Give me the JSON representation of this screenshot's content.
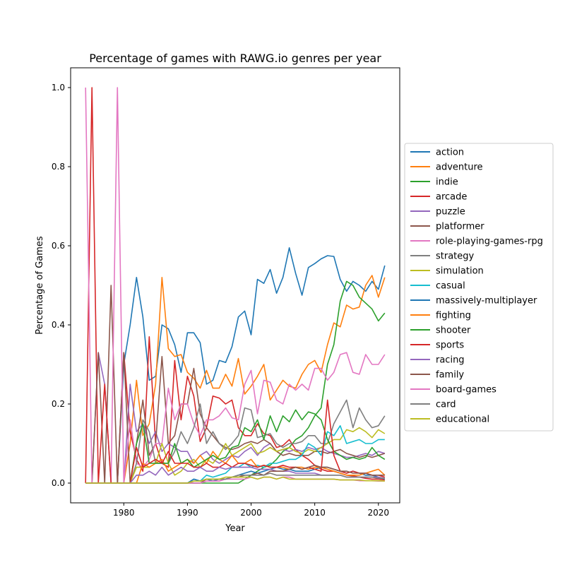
{
  "chart_data": {
    "type": "line",
    "title": "Percentage of games with RAWG.io genres per year",
    "xlabel": "Year",
    "ylabel": "Percentage of Games",
    "xlim": [
      1971.65,
      2023.35
    ],
    "ylim": [
      -0.05,
      1.05
    ],
    "xticks": [
      1980,
      1990,
      2000,
      2010,
      2020
    ],
    "yticks": [
      0.0,
      0.2,
      0.4,
      0.6,
      0.8,
      1.0
    ],
    "grid": false,
    "legend_position": "outside-right",
    "x": [
      1974,
      1975,
      1976,
      1977,
      1978,
      1979,
      1980,
      1981,
      1982,
      1983,
      1984,
      1985,
      1986,
      1987,
      1988,
      1989,
      1990,
      1991,
      1992,
      1993,
      1994,
      1995,
      1996,
      1997,
      1998,
      1999,
      2000,
      2001,
      2002,
      2003,
      2004,
      2005,
      2006,
      2007,
      2008,
      2009,
      2010,
      2011,
      2012,
      2013,
      2014,
      2015,
      2016,
      2017,
      2018,
      2019,
      2020,
      2021
    ],
    "series": [
      {
        "name": "action",
        "color": "#1f77b4",
        "values": [
          0,
          0,
          0,
          0,
          0,
          0,
          0.3,
          0.4,
          0.52,
          0.42,
          0.26,
          0.27,
          0.4,
          0.39,
          0.35,
          0.28,
          0.38,
          0.38,
          0.355,
          0.25,
          0.26,
          0.31,
          0.305,
          0.345,
          0.42,
          0.435,
          0.375,
          0.515,
          0.505,
          0.54,
          0.48,
          0.52,
          0.595,
          0.53,
          0.475,
          0.545,
          0.555,
          0.567,
          0.575,
          0.573,
          0.515,
          0.485,
          0.51,
          0.5,
          0.485,
          0.51,
          0.49,
          0.55
        ]
      },
      {
        "name": "adventure",
        "color": "#ff7f0e",
        "values": [
          0,
          0,
          0,
          0,
          0,
          0,
          0,
          0.1,
          0.26,
          0.12,
          0.15,
          0.25,
          0.52,
          0.34,
          0.32,
          0.325,
          0.28,
          0.265,
          0.24,
          0.285,
          0.24,
          0.24,
          0.275,
          0.245,
          0.315,
          0.225,
          0.245,
          0.27,
          0.3,
          0.21,
          0.235,
          0.26,
          0.245,
          0.24,
          0.275,
          0.3,
          0.31,
          0.28,
          0.35,
          0.405,
          0.395,
          0.45,
          0.44,
          0.445,
          0.5,
          0.525,
          0.47,
          0.52
        ]
      },
      {
        "name": "indie",
        "color": "#2ca02c",
        "values": [
          0,
          0,
          0,
          0,
          0,
          0,
          0,
          0,
          0,
          0,
          0,
          0,
          0,
          0,
          0,
          0,
          0,
          0,
          0,
          0,
          0,
          0,
          0,
          0,
          0,
          0.01,
          0.02,
          0.03,
          0.04,
          0.045,
          0.06,
          0.08,
          0.09,
          0.11,
          0.12,
          0.14,
          0.17,
          0.19,
          0.3,
          0.35,
          0.46,
          0.51,
          0.5,
          0.47,
          0.455,
          0.44,
          0.41,
          0.43
        ]
      },
      {
        "name": "arcade",
        "color": "#d62728",
        "values": [
          0,
          1.0,
          0,
          0,
          0,
          0,
          0.33,
          0.13,
          0.06,
          0.03,
          0.37,
          0.1,
          0.05,
          0.04,
          0.31,
          0.16,
          0.27,
          0.22,
          0.105,
          0.14,
          0.22,
          0.215,
          0.2,
          0.21,
          0.14,
          0.12,
          0.12,
          0.15,
          0.125,
          0.12,
          0.09,
          0.095,
          0.11,
          0.085,
          0.07,
          0.06,
          0.045,
          0.035,
          0.03,
          0.03,
          0.025,
          0.02,
          0.018,
          0.015,
          0.012,
          0.01,
          0.01,
          0.008
        ]
      },
      {
        "name": "puzzle",
        "color": "#9467bd",
        "values": [
          0,
          0,
          0.33,
          0.25,
          0,
          0,
          0,
          0.25,
          0.13,
          0.15,
          0.1,
          0.13,
          0.08,
          0.1,
          0.09,
          0.08,
          0.08,
          0.05,
          0.07,
          0.08,
          0.06,
          0.05,
          0.06,
          0.07,
          0.065,
          0.08,
          0.09,
          0.07,
          0.09,
          0.1,
          0.08,
          0.085,
          0.08,
          0.085,
          0.08,
          0.09,
          0.085,
          0.09,
          0.08,
          0.075,
          0.07,
          0.065,
          0.065,
          0.07,
          0.075,
          0.07,
          0.08,
          0.075
        ]
      },
      {
        "name": "platformer",
        "color": "#8c564b",
        "values": [
          0,
          0,
          0.33,
          0,
          0.5,
          0,
          0.33,
          0,
          0.1,
          0.21,
          0.07,
          0.1,
          0.32,
          0.1,
          0.12,
          0.2,
          0.2,
          0.29,
          0.175,
          0.14,
          0.12,
          0.1,
          0.09,
          0.085,
          0.09,
          0.1,
          0.105,
          0.1,
          0.11,
          0.1,
          0.08,
          0.07,
          0.075,
          0.07,
          0.07,
          0.07,
          0.08,
          0.08,
          0.075,
          0.08,
          0.085,
          0.075,
          0.07,
          0.065,
          0.07,
          0.065,
          0.07,
          0.075
        ]
      },
      {
        "name": "role-playing-games-rpg",
        "color": "#e377c2",
        "values": [
          1.0,
          0,
          0,
          0,
          0,
          1.0,
          0,
          0.16,
          0.05,
          0.04,
          0.06,
          0.1,
          0.1,
          0.24,
          0.16,
          0.2,
          0.2,
          0.15,
          0.12,
          0.16,
          0.16,
          0.17,
          0.19,
          0.165,
          0.16,
          0.25,
          0.285,
          0.175,
          0.26,
          0.255,
          0.21,
          0.2,
          0.25,
          0.235,
          0.25,
          0.235,
          0.29,
          0.29,
          0.26,
          0.28,
          0.325,
          0.33,
          0.28,
          0.275,
          0.325,
          0.3,
          0.3,
          0.325
        ]
      },
      {
        "name": "strategy",
        "color": "#7f7f7f",
        "values": [
          0,
          0,
          0,
          0,
          0,
          0,
          0,
          0,
          0.05,
          0.16,
          0.13,
          0.05,
          0.05,
          0.05,
          0.08,
          0.13,
          0.1,
          0.14,
          0.2,
          0.1,
          0.13,
          0.1,
          0.085,
          0.1,
          0.12,
          0.19,
          0.185,
          0.115,
          0.12,
          0.125,
          0.1,
          0.09,
          0.1,
          0.1,
          0.105,
          0.12,
          0.12,
          0.1,
          0.1,
          0.15,
          0.18,
          0.21,
          0.14,
          0.19,
          0.16,
          0.14,
          0.145,
          0.17
        ]
      },
      {
        "name": "simulation",
        "color": "#bcbd22",
        "values": [
          0,
          0,
          0,
          0,
          0,
          0,
          0,
          0,
          0.04,
          0.04,
          0.04,
          0.05,
          0.1,
          0.05,
          0.02,
          0.03,
          0.05,
          0.06,
          0.04,
          0.06,
          0.05,
          0.07,
          0.1,
          0.07,
          0.08,
          0.09,
          0.1,
          0.075,
          0.08,
          0.09,
          0.08,
          0.085,
          0.09,
          0.08,
          0.075,
          0.085,
          0.08,
          0.09,
          0.1,
          0.11,
          0.11,
          0.135,
          0.13,
          0.14,
          0.13,
          0.115,
          0.135,
          0.125
        ]
      },
      {
        "name": "casual",
        "color": "#17becf",
        "values": [
          0,
          0,
          0,
          0,
          0,
          0,
          0,
          0,
          0,
          0,
          0,
          0,
          0,
          0,
          0,
          0,
          0,
          0.01,
          0.005,
          0.02,
          0.015,
          0.02,
          0.025,
          0.04,
          0.04,
          0.05,
          0.04,
          0.045,
          0.04,
          0.05,
          0.05,
          0.055,
          0.06,
          0.06,
          0.07,
          0.1,
          0.09,
          0.07,
          0.13,
          0.12,
          0.145,
          0.1,
          0.105,
          0.11,
          0.1,
          0.1,
          0.11,
          0.11
        ]
      },
      {
        "name": "massively-multiplayer",
        "color": "#1f77b4",
        "values": [
          0,
          0,
          0,
          0,
          0,
          0,
          0,
          0,
          0,
          0,
          0,
          0,
          0,
          0,
          0,
          0,
          0,
          0.01,
          0.005,
          0.01,
          0.005,
          0.01,
          0.01,
          0.015,
          0.02,
          0.025,
          0.03,
          0.025,
          0.03,
          0.035,
          0.04,
          0.035,
          0.035,
          0.03,
          0.03,
          0.03,
          0.035,
          0.04,
          0.04,
          0.035,
          0.03,
          0.025,
          0.03,
          0.025,
          0.02,
          0.02,
          0.015,
          0.01
        ]
      },
      {
        "name": "fighting",
        "color": "#ff7f0e",
        "values": [
          0,
          0,
          0,
          0,
          0,
          0,
          0,
          0,
          0,
          0.05,
          0.04,
          0.05,
          0.06,
          0.03,
          0.04,
          0.05,
          0.06,
          0.05,
          0.07,
          0.05,
          0.08,
          0.06,
          0.05,
          0.07,
          0.05,
          0.05,
          0.06,
          0.04,
          0.045,
          0.04,
          0.04,
          0.04,
          0.035,
          0.04,
          0.04,
          0.035,
          0.04,
          0.04,
          0.035,
          0.03,
          0.025,
          0.02,
          0.02,
          0.02,
          0.025,
          0.03,
          0.035,
          0.02
        ]
      },
      {
        "name": "shooter",
        "color": "#2ca02c",
        "values": [
          0,
          0,
          0,
          0,
          0,
          0,
          0,
          0,
          0.1,
          0.15,
          0.05,
          0.05,
          0.05,
          0.05,
          0.1,
          0.05,
          0.06,
          0.04,
          0.05,
          0.06,
          0.07,
          0.06,
          0.065,
          0.09,
          0.095,
          0.14,
          0.13,
          0.16,
          0.11,
          0.17,
          0.13,
          0.17,
          0.155,
          0.185,
          0.16,
          0.18,
          0.175,
          0.16,
          0.11,
          0.08,
          0.07,
          0.06,
          0.065,
          0.06,
          0.065,
          0.09,
          0.07,
          0.06
        ]
      },
      {
        "name": "sports",
        "color": "#d62728",
        "values": [
          0,
          0,
          0,
          0.25,
          0,
          0,
          0,
          0,
          0.09,
          0.04,
          0.05,
          0.06,
          0.05,
          0.08,
          0.05,
          0.05,
          0.05,
          0.04,
          0.04,
          0.05,
          0.04,
          0.04,
          0.05,
          0.04,
          0.05,
          0.05,
          0.045,
          0.04,
          0.045,
          0.04,
          0.04,
          0.045,
          0.04,
          0.04,
          0.035,
          0.04,
          0.035,
          0.03,
          0.21,
          0.07,
          0.03,
          0.025,
          0.03,
          0.025,
          0.025,
          0.02,
          0.02,
          0.015
        ]
      },
      {
        "name": "racing",
        "color": "#9467bd",
        "values": [
          0,
          0,
          0,
          0,
          0,
          0,
          0,
          0,
          0.02,
          0.02,
          0.03,
          0.02,
          0.04,
          0.02,
          0.03,
          0.04,
          0.03,
          0.03,
          0.04,
          0.03,
          0.03,
          0.04,
          0.035,
          0.04,
          0.04,
          0.04,
          0.04,
          0.035,
          0.035,
          0.035,
          0.03,
          0.03,
          0.03,
          0.025,
          0.025,
          0.025,
          0.025,
          0.02,
          0.02,
          0.02,
          0.02,
          0.015,
          0.015,
          0.015,
          0.015,
          0.015,
          0.015,
          0.012
        ]
      },
      {
        "name": "family",
        "color": "#8c564b",
        "values": [
          0,
          0,
          0,
          0,
          0,
          0,
          0,
          0,
          0,
          0,
          0,
          0,
          0,
          0,
          0,
          0,
          0,
          0,
          0,
          0.01,
          0.01,
          0.01,
          0.01,
          0.015,
          0.015,
          0.02,
          0.02,
          0.025,
          0.02,
          0.03,
          0.03,
          0.03,
          0.035,
          0.04,
          0.035,
          0.04,
          0.045,
          0.04,
          0.04,
          0.035,
          0.03,
          0.03,
          0.025,
          0.025,
          0.025,
          0.02,
          0.02,
          0.02
        ]
      },
      {
        "name": "board-games",
        "color": "#e377c2",
        "values": [
          0,
          0,
          0,
          0,
          0,
          0,
          0,
          0,
          0,
          0,
          0,
          0,
          0,
          0,
          0,
          0,
          0,
          0,
          0,
          0.005,
          0.005,
          0.005,
          0.01,
          0.01,
          0.01,
          0.01,
          0.015,
          0.01,
          0.015,
          0.015,
          0.01,
          0.015,
          0.015,
          0.01,
          0.01,
          0.01,
          0.01,
          0.01,
          0.01,
          0.01,
          0.008,
          0.008,
          0.008,
          0.006,
          0.006,
          0.006,
          0.005,
          0.005
        ]
      },
      {
        "name": "card",
        "color": "#7f7f7f",
        "values": [
          0,
          0,
          0,
          0,
          0,
          0,
          0,
          0,
          0,
          0,
          0,
          0,
          0,
          0,
          0,
          0,
          0,
          0.005,
          0.005,
          0.01,
          0.01,
          0.01,
          0.01,
          0.015,
          0.02,
          0.02,
          0.02,
          0.02,
          0.02,
          0.025,
          0.02,
          0.02,
          0.02,
          0.02,
          0.02,
          0.02,
          0.02,
          0.02,
          0.02,
          0.02,
          0.02,
          0.015,
          0.015,
          0.015,
          0.015,
          0.015,
          0.012,
          0.012
        ]
      },
      {
        "name": "educational",
        "color": "#bcbd22",
        "values": [
          0,
          0,
          0,
          0,
          0,
          0,
          0,
          0,
          0,
          0,
          0,
          0,
          0,
          0,
          0,
          0,
          0,
          0.005,
          0.005,
          0.01,
          0.01,
          0.01,
          0.015,
          0.015,
          0.015,
          0.015,
          0.015,
          0.01,
          0.015,
          0.015,
          0.01,
          0.015,
          0.01,
          0.01,
          0.01,
          0.01,
          0.01,
          0.01,
          0.01,
          0.01,
          0.008,
          0.008,
          0.008,
          0.008,
          0.006,
          0.006,
          0.006,
          0.005
        ]
      }
    ]
  }
}
